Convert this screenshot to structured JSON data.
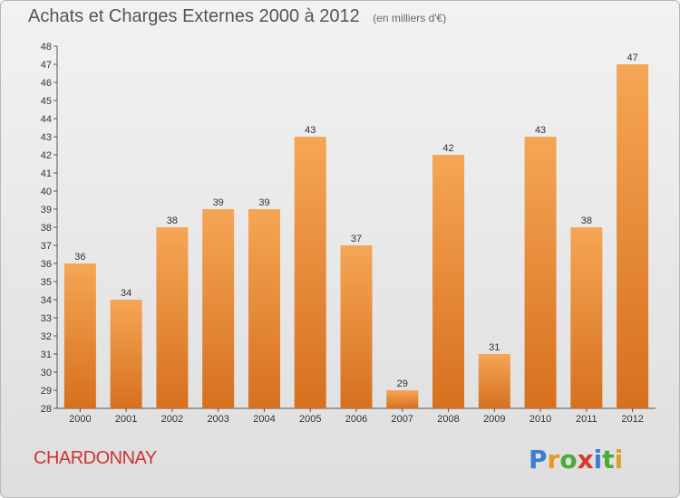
{
  "title": "Achats et Charges Externes 2000 à 2012",
  "subtitle": "(en milliers d'€)",
  "location": "CHARDONNAY",
  "brand": {
    "letters": [
      "P",
      "r",
      "o",
      "x",
      "i",
      "t",
      "i"
    ],
    "colors": [
      "#3a7fd5",
      "#e8962a",
      "#4aaa3a",
      "#d93a2a",
      "#3a7fd5",
      "#4aaa3a",
      "#d9a12a"
    ]
  },
  "colors": {
    "bar_top": "#f5a655",
    "bar_bottom": "#d6701f",
    "title": "#555555",
    "location": "#cc3333"
  },
  "chart_data": {
    "type": "bar",
    "categories": [
      "2000",
      "2001",
      "2002",
      "2003",
      "2004",
      "2005",
      "2006",
      "2007",
      "2008",
      "2009",
      "2010",
      "2011",
      "2012"
    ],
    "values": [
      36,
      34,
      38,
      39,
      39,
      43,
      37,
      29,
      42,
      31,
      43,
      38,
      47
    ],
    "ylim": [
      28,
      48
    ],
    "yticks": [
      28,
      29,
      30,
      31,
      32,
      33,
      34,
      35,
      36,
      37,
      38,
      39,
      40,
      41,
      42,
      43,
      44,
      45,
      46,
      47,
      48
    ],
    "grid": false,
    "data_labels": true
  }
}
